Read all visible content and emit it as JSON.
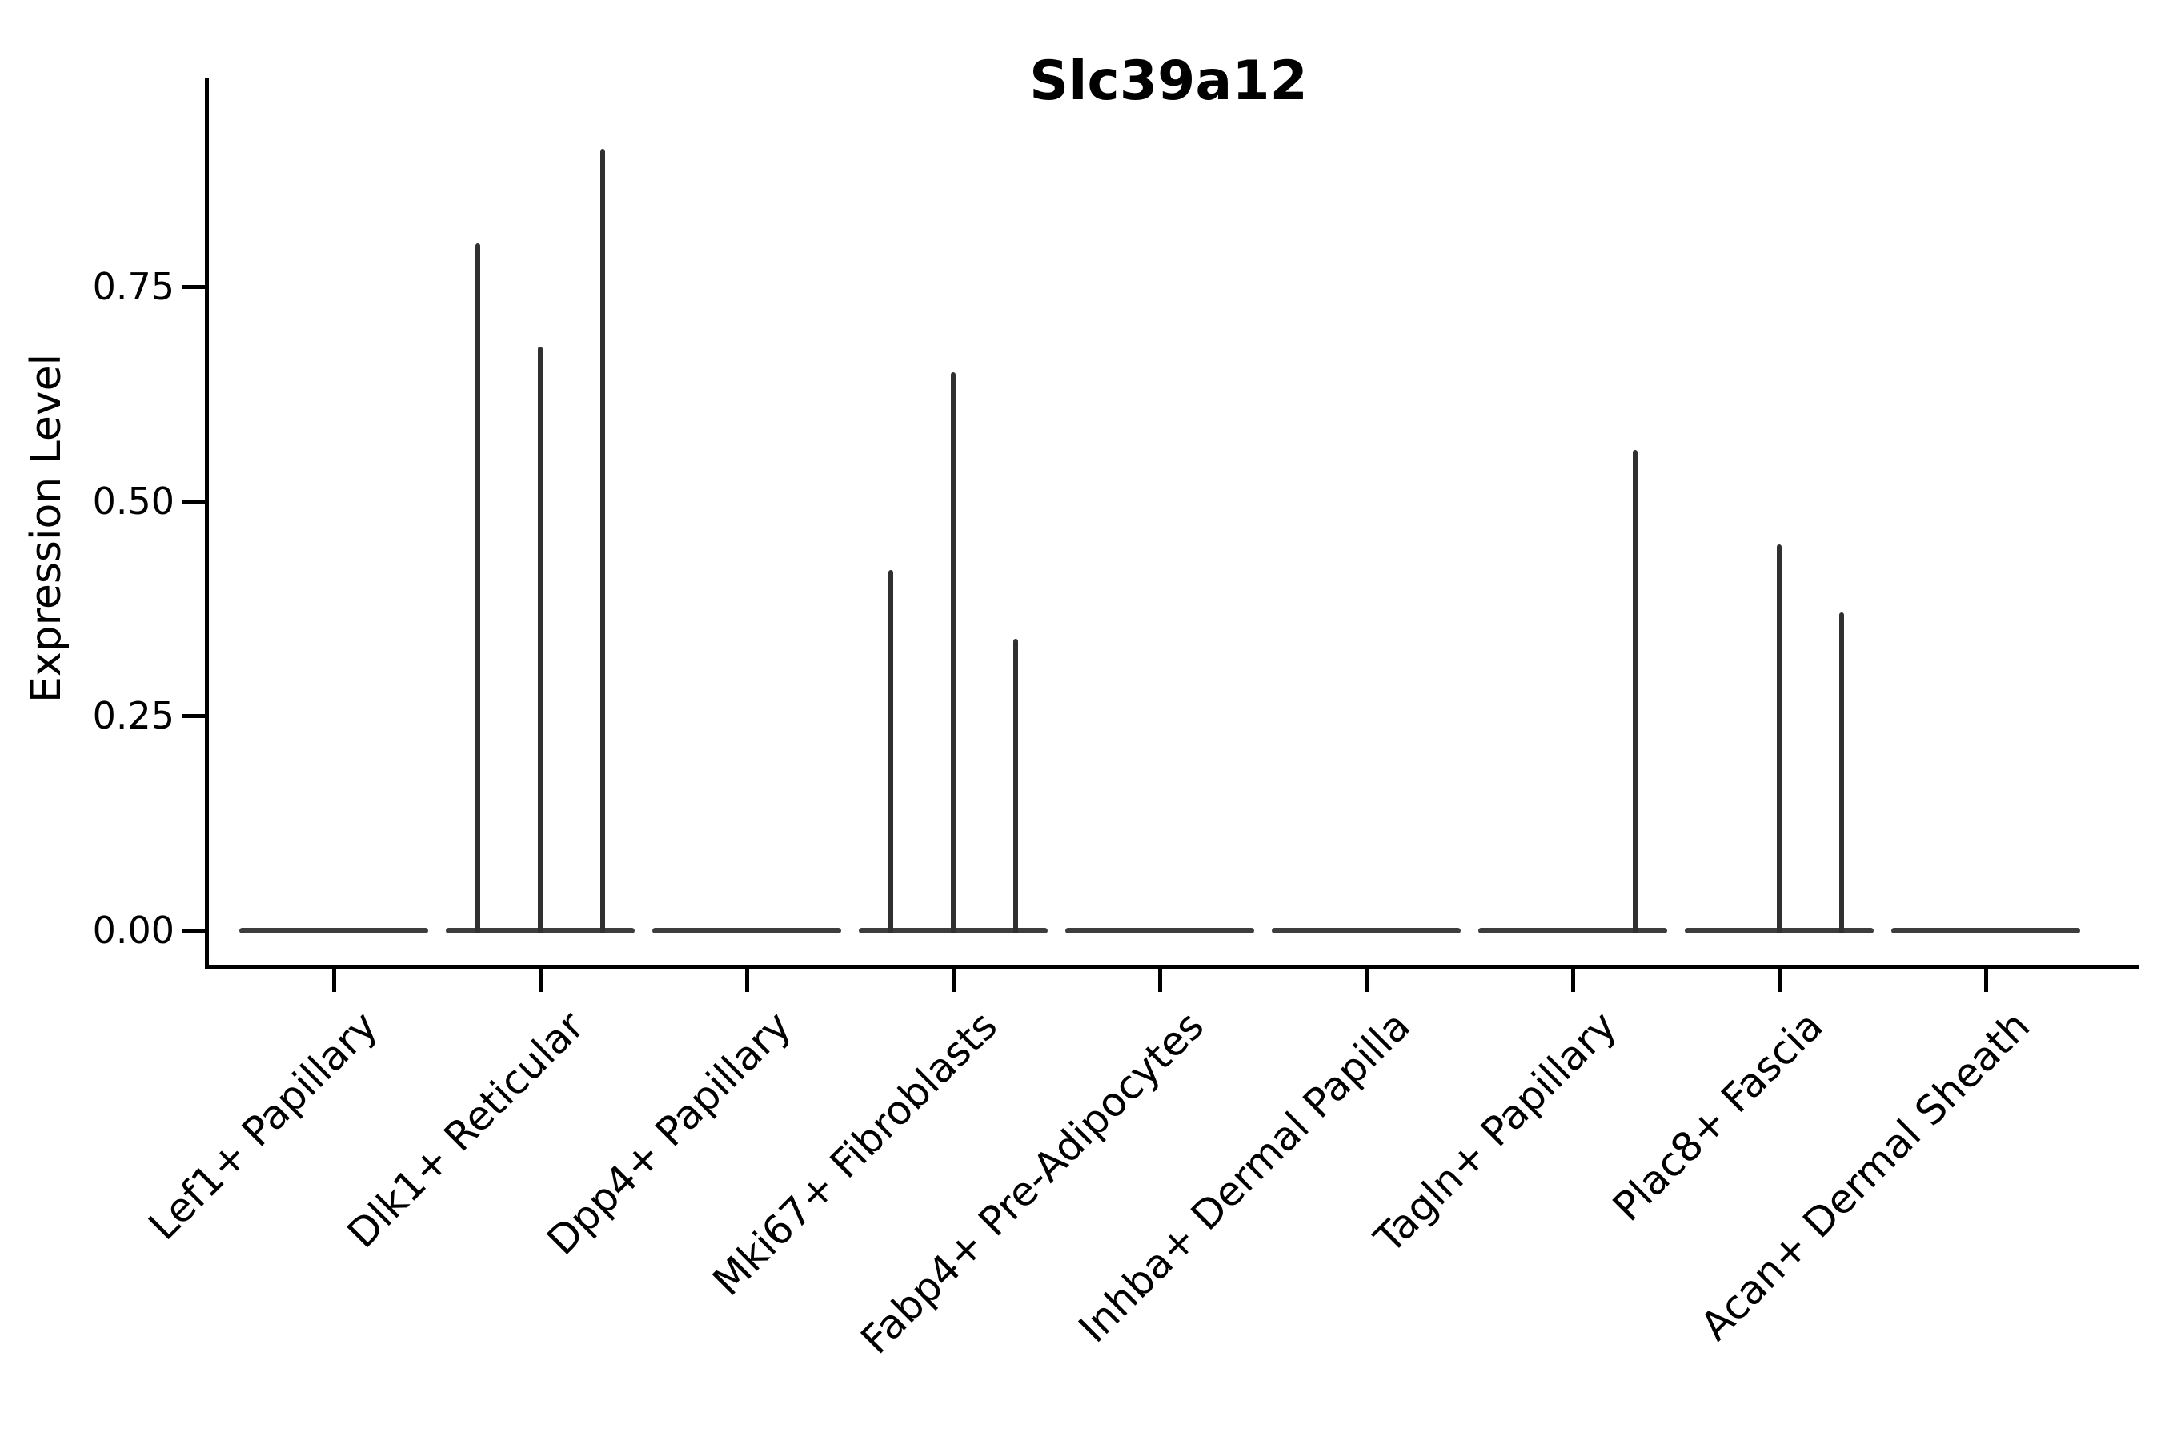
{
  "chart_data": {
    "type": "violin",
    "title": "Slc39a12",
    "ylabel": "Expression Level",
    "xlabel": "",
    "ytick_labels": [
      "0.00",
      "0.25",
      "0.50",
      "0.75"
    ],
    "ylim": [
      0,
      0.99
    ],
    "grid": false,
    "legend": false,
    "categories": [
      "Lef1+ Papillary",
      "Dlk1+ Reticular",
      "Dpp4+ Papillary",
      "Mki67+ Fibroblasts",
      "Fabp4+ Pre-Adipocytes",
      "Inhba+ Dermal Papilla",
      "Tagln+ Papillary",
      "Plac8+ Fascia",
      "Acan+ Dermal Sheath"
    ],
    "groups": [
      {
        "category": "Lef1+ Papillary",
        "baseline_value": 0,
        "spikes": []
      },
      {
        "category": "Dlk1+ Reticular",
        "baseline_value": 0,
        "spikes": [
          {
            "slot": "left",
            "value": 0.8
          },
          {
            "slot": "mid",
            "value": 0.68
          },
          {
            "slot": "right",
            "value": 0.91
          }
        ]
      },
      {
        "category": "Dpp4+ Papillary",
        "baseline_value": 0,
        "spikes": []
      },
      {
        "category": "Mki67+ Fibroblasts",
        "baseline_value": 0,
        "spikes": [
          {
            "slot": "left",
            "value": 0.42
          },
          {
            "slot": "mid",
            "value": 0.65
          },
          {
            "slot": "right",
            "value": 0.34
          }
        ]
      },
      {
        "category": "Fabp4+ Pre-Adipocytes",
        "baseline_value": 0,
        "spikes": []
      },
      {
        "category": "Inhba+ Dermal Papilla",
        "baseline_value": 0,
        "spikes": []
      },
      {
        "category": "Tagln+ Papillary",
        "baseline_value": 0,
        "spikes": [
          {
            "slot": "right",
            "value": 0.56
          }
        ]
      },
      {
        "category": "Plac8+ Fascia",
        "baseline_value": 0,
        "spikes": [
          {
            "slot": "mid",
            "value": 0.45
          },
          {
            "slot": "right",
            "value": 0.37
          }
        ]
      },
      {
        "category": "Acan+ Dermal Sheath",
        "baseline_value": 0,
        "spikes": []
      }
    ],
    "colors": {
      "violin": "#303030",
      "baseline": "#3d3d3d",
      "axis": "#000000",
      "text": "#000000",
      "background": "#ffffff"
    }
  }
}
